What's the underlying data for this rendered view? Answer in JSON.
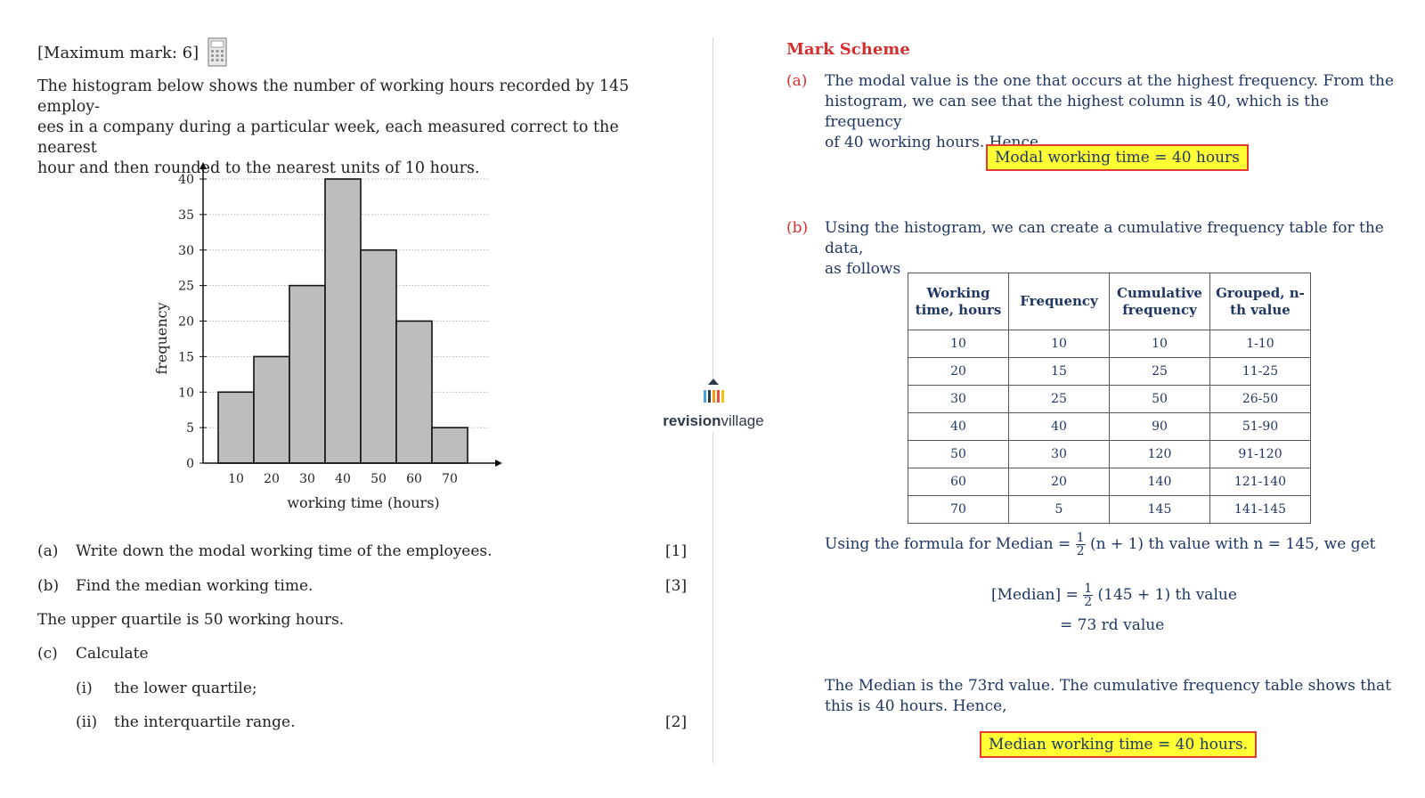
{
  "question": {
    "max_mark": "[Maximum mark: 6]",
    "calculator_icon": "calculator-icon",
    "intro": "The histogram below shows the number of working hours recorded by 145 employ-ees in a company during a particular week, each measured correct to the nearest hour and then rounded to the nearest units of 10 hours.",
    "intro_lines": [
      "The histogram below shows the number of working hours recorded by 145 employ-",
      "ees in a company during a particular week, each measured correct to the nearest",
      "hour and then rounded to the nearest units of 10 hours."
    ],
    "parts": [
      {
        "label": "(a)",
        "text": "Write down the modal working time of the employees.",
        "marks": "[1]"
      },
      {
        "label": "(b)",
        "text": "Find the median working time.",
        "marks": "[3]"
      }
    ],
    "upper_quartile_text": "The upper quartile is 50 working hours.",
    "part_c": {
      "label": "(c)",
      "text": "Calculate"
    },
    "sub_parts": [
      {
        "label": "(i)",
        "text": "the lower quartile;"
      },
      {
        "label": "(ii)",
        "text": "the interquartile range.",
        "marks": "[2]"
      }
    ]
  },
  "chart_data": {
    "type": "bar",
    "categories": [
      "10",
      "20",
      "30",
      "40",
      "50",
      "60",
      "70"
    ],
    "values": [
      10,
      15,
      25,
      40,
      30,
      20,
      5
    ],
    "title": "",
    "xlabel": "working time (hours)",
    "ylabel": "frequency",
    "ylim": [
      0,
      40
    ],
    "yticks": [
      0,
      5,
      10,
      15,
      20,
      25,
      30,
      35,
      40
    ],
    "grid": true,
    "bar_color": "#bdbdbd"
  },
  "logo": {
    "bold": "revision",
    "light": "village"
  },
  "mark_scheme": {
    "title": "Mark Scheme",
    "part_a": {
      "label": "(a)",
      "lines": [
        "The modal value is the one that occurs at the highest frequency.  From the",
        "histogram, we can see that the highest column is 40, which is the frequency",
        "of 40 working hours.  Hence,"
      ],
      "answer": "Modal working time = 40 hours"
    },
    "part_b": {
      "label": "(b)",
      "lines": [
        "Using the histogram, we can create a cumulative frequency table for the data,",
        "as follows"
      ]
    },
    "table": {
      "headers": [
        "Working time, hours",
        "Frequency",
        "Cumulative frequency",
        "Grouped, n-th value"
      ],
      "rows": [
        [
          "10",
          "10",
          "10",
          "1-10"
        ],
        [
          "20",
          "15",
          "25",
          "11-25"
        ],
        [
          "30",
          "25",
          "50",
          "26-50"
        ],
        [
          "40",
          "40",
          "90",
          "51-90"
        ],
        [
          "50",
          "30",
          "120",
          "91-120"
        ],
        [
          "60",
          "20",
          "140",
          "121-140"
        ],
        [
          "70",
          "5",
          "145",
          "141-145"
        ]
      ]
    },
    "formula_intro_pre": "Using the formula for Median =",
    "formula_intro_post": "(n + 1) th value with n = 145, we get",
    "frac_num": "1",
    "frac_den": "2",
    "median_lhs": "[Median] =",
    "median_rhs": "(145 + 1) th value",
    "median_line2": "= 73 rd value",
    "conclusion_lines": [
      "The Median is the 73rd value.  The cumulative frequency table shows that",
      "this is 40 hours.  Hence,"
    ],
    "answer_b": "Median working time = 40 hours."
  },
  "colors": {
    "accent_red": "#d32f2f",
    "answer_fill": "#ffff33",
    "mark_scheme_text": "#1f3763"
  }
}
